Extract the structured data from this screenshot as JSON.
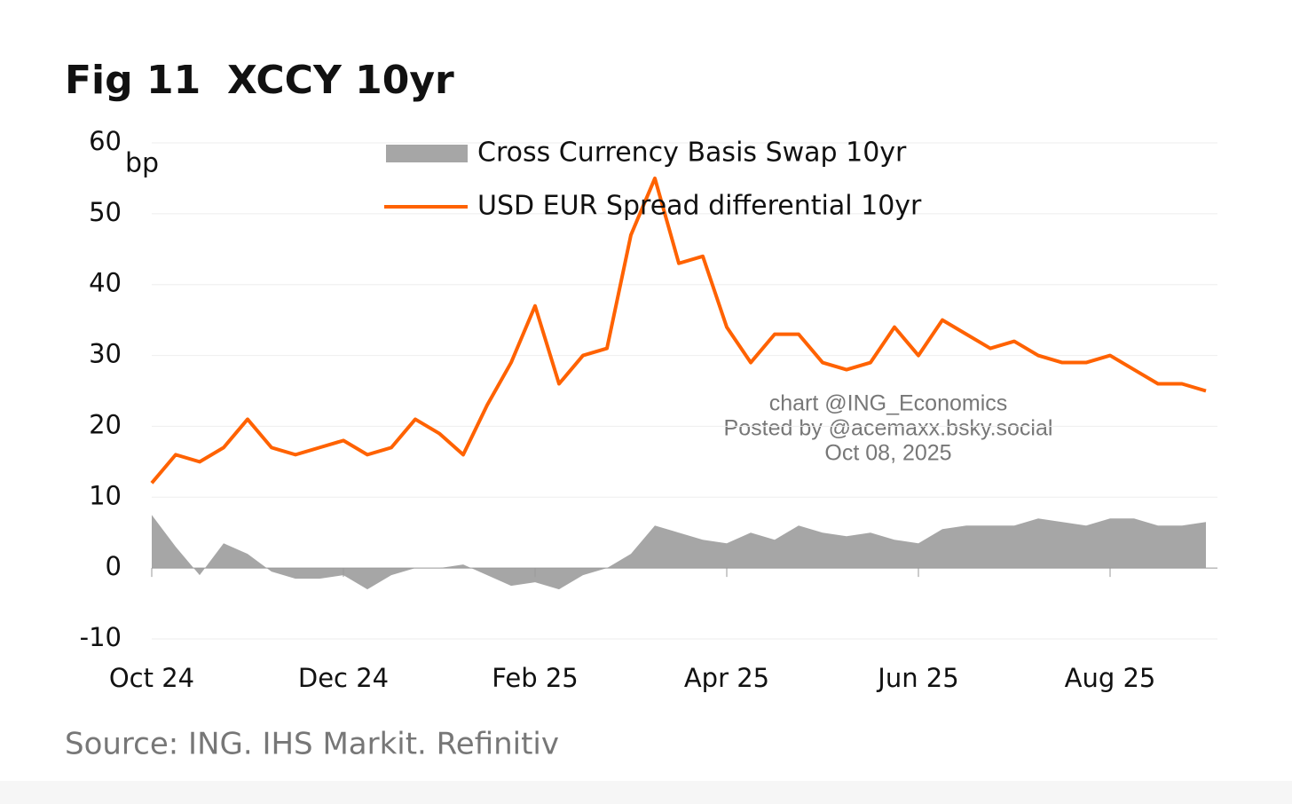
{
  "chart_data": {
    "type": "line",
    "figure_label": "Fig 11",
    "title": "XCCY 10yr",
    "y_unit": "bp",
    "source": "Source: ING. IHS Markit. Refinitiv",
    "annotations": [
      "chart @ING_Economics",
      "Posted by @acemaxx.bsky.social",
      "Oct 08, 2025"
    ],
    "categories": [
      "Oct 24",
      null,
      null,
      null,
      null,
      null,
      null,
      null,
      "Dec 24",
      null,
      null,
      null,
      null,
      null,
      null,
      null,
      "Feb 25",
      null,
      null,
      null,
      null,
      null,
      null,
      null,
      "Apr 25",
      null,
      null,
      null,
      null,
      null,
      null,
      null,
      "Jun 25",
      null,
      null,
      null,
      null,
      null,
      null,
      null,
      "Aug 25",
      null,
      null,
      null,
      null
    ],
    "series": [
      {
        "name": "Cross Currency Basis Swap 10yr",
        "kind": "area",
        "color": "#a6a6a6",
        "values": [
          7.5,
          3,
          -1,
          3.5,
          2,
          -0.5,
          -1.5,
          -1.5,
          -1,
          -3,
          -1,
          0,
          0,
          0.5,
          -1,
          -2.5,
          -2,
          -3,
          -1,
          0,
          2,
          6,
          5,
          4,
          3.5,
          5,
          4,
          6,
          5,
          4.5,
          5,
          4,
          3.5,
          5.5,
          6,
          6,
          6,
          7,
          6.5,
          6,
          7,
          7,
          6,
          6,
          6.5
        ]
      },
      {
        "name": "USD EUR Spread differential 10yr",
        "kind": "line",
        "color": "#ff6200",
        "values": [
          12,
          16,
          15,
          17,
          21,
          17,
          16,
          17,
          18,
          16,
          17,
          21,
          19,
          16,
          23,
          29,
          37,
          26,
          30,
          31,
          47,
          55,
          43,
          44,
          34,
          29,
          33,
          33,
          29,
          28,
          29,
          34,
          30,
          35,
          33,
          31,
          32,
          30,
          29,
          29,
          30,
          28,
          26,
          26,
          25
        ]
      }
    ],
    "ylim": [
      -10,
      60
    ],
    "yticks": [
      -10,
      0,
      10,
      20,
      30,
      40,
      50,
      60
    ],
    "grid": true
  }
}
